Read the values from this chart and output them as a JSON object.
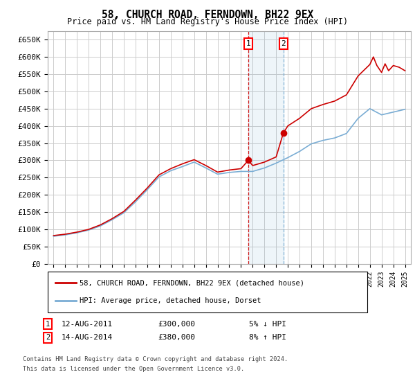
{
  "title": "58, CHURCH ROAD, FERNDOWN, BH22 9EX",
  "subtitle": "Price paid vs. HM Land Registry's House Price Index (HPI)",
  "ylabel_ticks": [
    "£0",
    "£50K",
    "£100K",
    "£150K",
    "£200K",
    "£250K",
    "£300K",
    "£350K",
    "£400K",
    "£450K",
    "£500K",
    "£550K",
    "£600K",
    "£650K"
  ],
  "ytick_values": [
    0,
    50000,
    100000,
    150000,
    200000,
    250000,
    300000,
    350000,
    400000,
    450000,
    500000,
    550000,
    600000,
    650000
  ],
  "ylim": [
    0,
    675000
  ],
  "xlim_years": [
    1994.5,
    2025.5
  ],
  "sale1_year": 2011.62,
  "sale1_price": 300000,
  "sale1_label": "1",
  "sale1_date": "12-AUG-2011",
  "sale1_pct": "5% ↓ HPI",
  "sale2_year": 2014.62,
  "sale2_price": 380000,
  "sale2_label": "2",
  "sale2_date": "14-AUG-2014",
  "sale2_pct": "8% ↑ HPI",
  "line1_color": "#cc0000",
  "line2_color": "#7aadd4",
  "grid_color": "#cccccc",
  "bg_color": "#ffffff",
  "sale_marker_color": "#cc0000",
  "footnote_line1": "Contains HM Land Registry data © Crown copyright and database right 2024.",
  "footnote_line2": "This data is licensed under the Open Government Licence v3.0.",
  "legend1_label": "58, CHURCH ROAD, FERNDOWN, BH22 9EX (detached house)",
  "legend2_label": "HPI: Average price, detached house, Dorset",
  "hpi_years": [
    1995,
    1996,
    1997,
    1998,
    1999,
    2000,
    2001,
    2002,
    2003,
    2004,
    2005,
    2006,
    2007,
    2008,
    2009,
    2010,
    2011,
    2012,
    2013,
    2014,
    2015,
    2016,
    2017,
    2018,
    2019,
    2020,
    2021,
    2022,
    2023,
    2024,
    2025
  ],
  "hpi_values": [
    80000,
    84000,
    90000,
    98000,
    110000,
    128000,
    148000,
    180000,
    215000,
    252000,
    270000,
    282000,
    295000,
    278000,
    260000,
    265000,
    268000,
    268000,
    278000,
    292000,
    308000,
    326000,
    348000,
    358000,
    365000,
    378000,
    422000,
    450000,
    432000,
    440000,
    448000
  ],
  "prop_years": [
    1995,
    1996,
    1997,
    1998,
    1999,
    2000,
    2001,
    2002,
    2003,
    2004,
    2005,
    2006,
    2007,
    2008,
    2009,
    2010,
    2011,
    2011.62,
    2012,
    2013,
    2014,
    2014.62,
    2015,
    2016,
    2017,
    2018,
    2019,
    2020,
    2021,
    2022,
    2022.3,
    2022.6,
    2023,
    2023.3,
    2023.6,
    2024,
    2024.5,
    2025
  ],
  "prop_values": [
    82000,
    86000,
    92000,
    100000,
    113000,
    131000,
    152000,
    185000,
    220000,
    258000,
    276000,
    290000,
    302000,
    285000,
    266000,
    272000,
    276000,
    300000,
    285000,
    295000,
    310000,
    380000,
    400000,
    422000,
    450000,
    462000,
    472000,
    490000,
    545000,
    578000,
    600000,
    575000,
    555000,
    580000,
    560000,
    575000,
    570000,
    560000
  ]
}
